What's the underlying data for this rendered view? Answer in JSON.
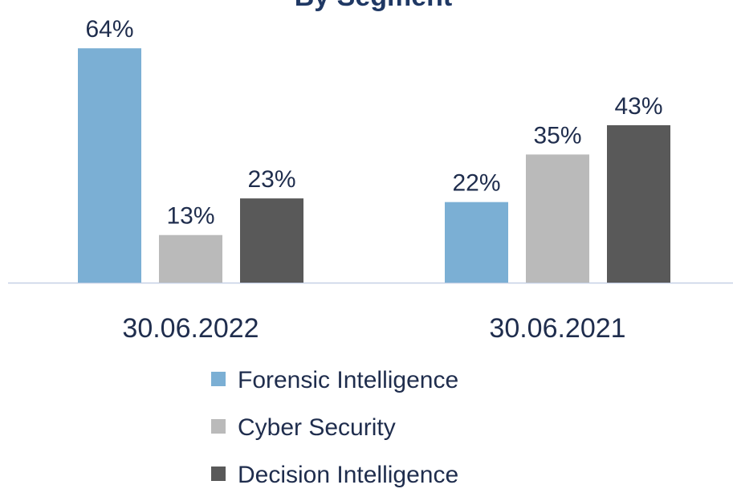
{
  "chart_data": {
    "type": "bar",
    "title": "By Segment",
    "categories": [
      "30.06.2022",
      "30.06.2021"
    ],
    "series": [
      {
        "name": "Forensic Intelligence",
        "color": "#7bafd4",
        "values": [
          64,
          22
        ],
        "value_labels": [
          "64%",
          "22%"
        ]
      },
      {
        "name": "Cyber Security",
        "color": "#bababa",
        "values": [
          13,
          35
        ],
        "value_labels": [
          "13%",
          "35%"
        ]
      },
      {
        "name": "Decision Intelligence",
        "color": "#595959",
        "values": [
          23,
          43
        ],
        "value_labels": [
          "23%",
          "43%"
        ]
      }
    ]
  }
}
